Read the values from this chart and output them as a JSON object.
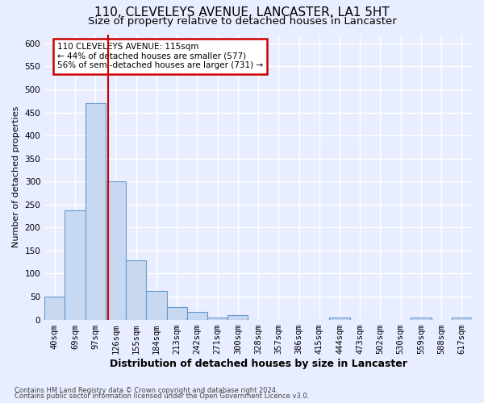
{
  "title": "110, CLEVELEYS AVENUE, LANCASTER, LA1 5HT",
  "subtitle": "Size of property relative to detached houses in Lancaster",
  "xlabel": "Distribution of detached houses by size in Lancaster",
  "ylabel": "Number of detached properties",
  "footer_line1": "Contains HM Land Registry data © Crown copyright and database right 2024.",
  "footer_line2": "Contains public sector information licensed under the Open Government Licence v3.0.",
  "bar_labels": [
    "40sqm",
    "69sqm",
    "97sqm",
    "126sqm",
    "155sqm",
    "184sqm",
    "213sqm",
    "242sqm",
    "271sqm",
    "300sqm",
    "328sqm",
    "357sqm",
    "386sqm",
    "415sqm",
    "444sqm",
    "473sqm",
    "502sqm",
    "530sqm",
    "559sqm",
    "588sqm",
    "617sqm"
  ],
  "bar_values": [
    50,
    238,
    470,
    300,
    128,
    62,
    28,
    16,
    5,
    10,
    0,
    0,
    0,
    0,
    5,
    0,
    0,
    0,
    5,
    0,
    5
  ],
  "bar_color": "#c8d8f0",
  "bar_edge_color": "#6699cc",
  "background_color": "#e8eeff",
  "grid_color": "#ffffff",
  "ylim": [
    0,
    620
  ],
  "yticks": [
    0,
    50,
    100,
    150,
    200,
    250,
    300,
    350,
    400,
    450,
    500,
    550,
    600
  ],
  "red_line_x": 2.62,
  "red_line_color": "#cc0000",
  "annotation_text": "110 CLEVELEYS AVENUE: 115sqm\n← 44% of detached houses are smaller (577)\n56% of semi-detached houses are larger (731) →",
  "annotation_box_color": "#ffffff",
  "annotation_box_edge": "#cc0000",
  "title_fontsize": 11,
  "subtitle_fontsize": 9.5,
  "xlabel_fontsize": 9,
  "ylabel_fontsize": 8,
  "tick_fontsize": 7.5,
  "annotation_fontsize": 7.5,
  "footer_fontsize": 6
}
